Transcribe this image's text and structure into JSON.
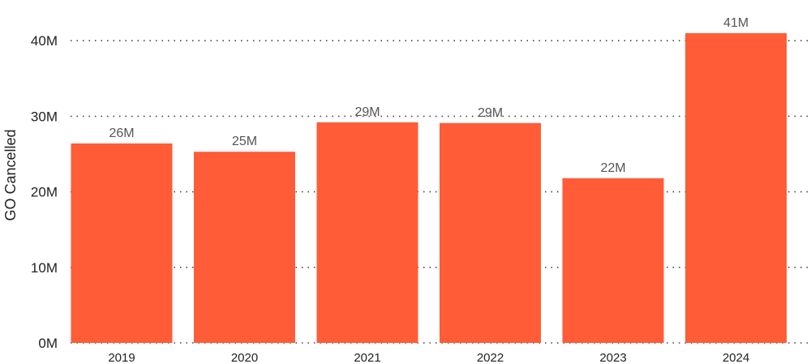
{
  "chart_data": {
    "type": "bar",
    "ylabel": "GO Cancelled",
    "xlabel": "",
    "categories": [
      "2019",
      "2020",
      "2021",
      "2022",
      "2023",
      "2024"
    ],
    "values": [
      26.4,
      25.3,
      29.2,
      29.1,
      21.8,
      41.0
    ],
    "data_labels": [
      "26M",
      "25M",
      "29M",
      "29M",
      "22M",
      "41M"
    ],
    "y_ticks": [
      0,
      10,
      20,
      30,
      40
    ],
    "y_tick_labels": [
      "0M",
      "10M",
      "20M",
      "30M",
      "40M"
    ],
    "ylim": [
      0,
      41
    ],
    "grid": true,
    "bar_color": "#ff5c37"
  }
}
